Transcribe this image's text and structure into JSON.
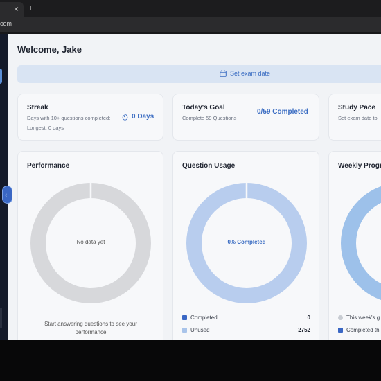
{
  "browser": {
    "tab_close": "×",
    "new_tab": "+",
    "url": "com"
  },
  "header": {
    "welcome": "Welcome, Jake"
  },
  "exam_bar": {
    "label": "Set exam date",
    "icon": "calendar-icon"
  },
  "streak": {
    "title": "Streak",
    "subtitle": "Days with 10+ questions completed:",
    "longest": "Longest: 0 days",
    "value": "0 Days",
    "icon": "flame-icon"
  },
  "goal": {
    "title": "Today's Goal",
    "subtitle": "Complete 59 Questions",
    "value": "0/59 Completed"
  },
  "pace": {
    "title": "Study Pace",
    "subtitle": "Set exam date to"
  },
  "performance": {
    "title": "Performance",
    "center": "No data yet",
    "footer": "Start answering questions to see your performance"
  },
  "usage": {
    "title": "Question Usage",
    "center": "0% Completed",
    "completed_fraction": 0,
    "legend": [
      {
        "label": "Completed",
        "value": "0",
        "color": "#3a67c4"
      },
      {
        "label": "Unused",
        "value": "2752",
        "color": "#a9c4ea"
      }
    ]
  },
  "weekly": {
    "title": "Weekly Progr",
    "legend": [
      {
        "label": "This week's g",
        "color": "#c8ccd2"
      },
      {
        "label": "Completed thi",
        "color": "#3a67c4"
      }
    ]
  },
  "colors": {
    "accent": "#3a6cc2",
    "donut_grey": "#d7d8db",
    "donut_light_blue": "#b8cdee",
    "donut_weekly": "#9dc1ea"
  }
}
